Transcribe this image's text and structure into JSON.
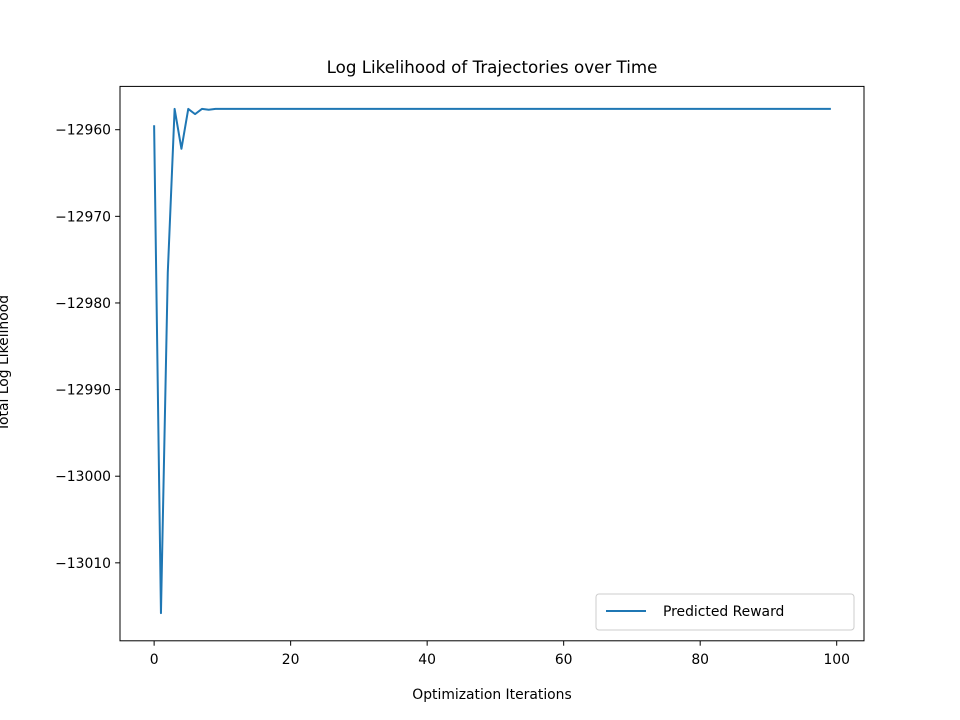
{
  "chart_data": {
    "type": "line",
    "title": "Log Likelihood of Trajectories over Time",
    "xlabel": "Optimization Iterations",
    "ylabel": "Total Log Likelihood",
    "xlim": [
      -5,
      104
    ],
    "ylim": [
      -13019,
      -12955
    ],
    "xticks": [
      0,
      20,
      40,
      60,
      80,
      100
    ],
    "xtick_labels": [
      "0",
      "20",
      "40",
      "60",
      "80",
      "100"
    ],
    "yticks": [
      -12960,
      -12970,
      -12980,
      -12990,
      -13000,
      -13010
    ],
    "ytick_labels": [
      "−12960",
      "−12970",
      "−12980",
      "−12990",
      "−13000",
      "−13010"
    ],
    "grid": false,
    "legend": {
      "position": "lower-right"
    },
    "series": [
      {
        "name": "Predicted Reward",
        "color": "#1f77b4",
        "x": [
          0,
          1,
          2,
          3,
          4,
          5,
          6,
          7,
          8,
          9,
          10,
          12,
          15,
          20,
          30,
          40,
          50,
          60,
          70,
          80,
          90,
          99
        ],
        "y": [
          -12959.6,
          -13015.8,
          -12976.5,
          -12957.6,
          -12962.2,
          -12957.6,
          -12958.2,
          -12957.6,
          -12957.7,
          -12957.6,
          -12957.6,
          -12957.6,
          -12957.6,
          -12957.6,
          -12957.6,
          -12957.6,
          -12957.6,
          -12957.6,
          -12957.6,
          -12957.6,
          -12957.6,
          -12957.6
        ]
      }
    ]
  }
}
